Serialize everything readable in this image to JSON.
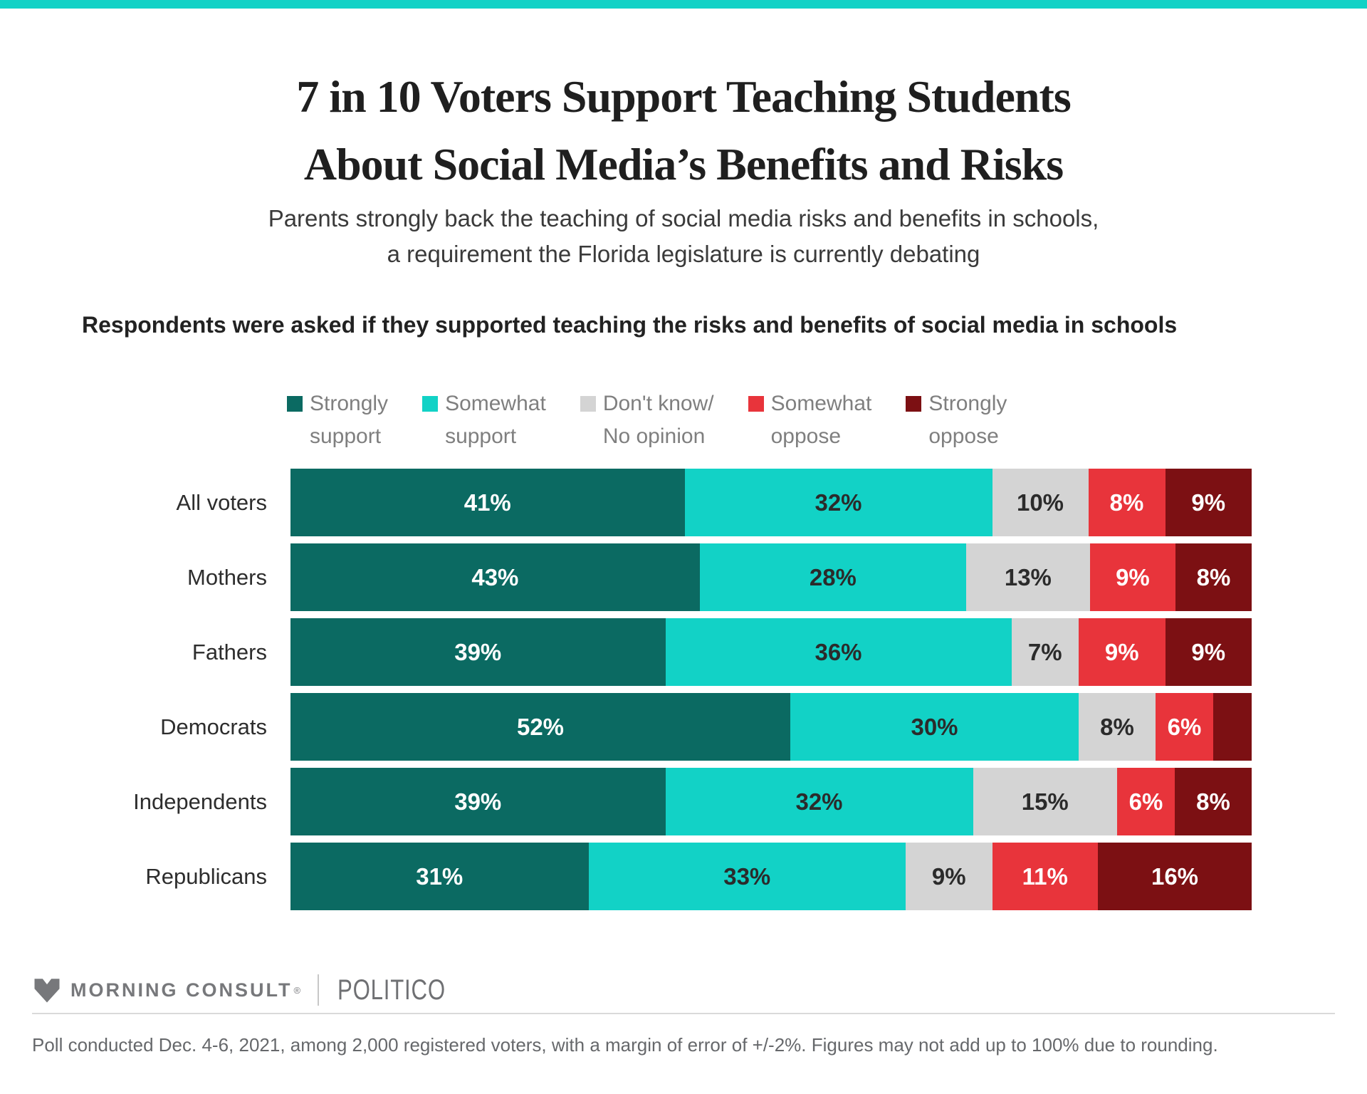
{
  "header": {
    "title_line1": "7 in 10 Voters Support Teaching Students",
    "title_line2": "About Social Media’s Benefits and Risks",
    "subtitle_line1": "Parents strongly back the teaching of social media risks and benefits in schools,",
    "subtitle_line2": "a requirement the Florida legislature is currently debating",
    "question": "Respondents were asked if they supported teaching the risks and benefits of social media in schools"
  },
  "colors": {
    "accent_bar": "#12d2c6",
    "strongly_support": "#0b6a62",
    "somewhat_support": "#12d2c6",
    "dont_know_no_opinion": "#d4d4d4",
    "somewhat_oppose": "#e8343b",
    "strongly_oppose": "#7c1013",
    "legend_text": "#7f7f7f",
    "dark_value_text": "#2b2b2b",
    "light_value_text": "#ffffff"
  },
  "legend": {
    "items": [
      {
        "label_line1": "Strongly",
        "label_line2": "support",
        "color": "#0b6a62"
      },
      {
        "label_line1": "Somewhat",
        "label_line2": "support",
        "color": "#12d2c6"
      },
      {
        "label_line1": "Don't know/",
        "label_line2": "No opinion",
        "color": "#d4d4d4"
      },
      {
        "label_line1": "Somewhat",
        "label_line2": "oppose",
        "color": "#e8343b"
      },
      {
        "label_line1": "Strongly",
        "label_line2": "oppose",
        "color": "#7c1013"
      }
    ]
  },
  "chart_data": {
    "type": "bar",
    "orientation": "horizontal-stacked",
    "title": "7 in 10 Voters Support Teaching Students About Social Media’s Benefits and Risks",
    "categories": [
      "All voters",
      "Mothers",
      "Fathers",
      "Democrats",
      "Independents",
      "Republicans"
    ],
    "series": [
      {
        "name": "Strongly support",
        "color": "#0b6a62",
        "text_color": "#ffffff",
        "values": [
          41,
          43,
          39,
          52,
          39,
          31
        ]
      },
      {
        "name": "Somewhat support",
        "color": "#12d2c6",
        "text_color": "#2b2b2b",
        "values": [
          32,
          28,
          36,
          30,
          32,
          33
        ]
      },
      {
        "name": "Don't know/ No opinion",
        "color": "#d4d4d4",
        "text_color": "#2b2b2b",
        "values": [
          10,
          13,
          7,
          8,
          15,
          9
        ]
      },
      {
        "name": "Somewhat oppose",
        "color": "#e8343b",
        "text_color": "#ffffff",
        "values": [
          8,
          9,
          9,
          6,
          6,
          11
        ]
      },
      {
        "name": "Strongly oppose",
        "color": "#7c1013",
        "text_color": "#ffffff",
        "values": [
          9,
          8,
          9,
          4,
          8,
          16
        ]
      }
    ],
    "segment_labels": [
      [
        "41%",
        "32%",
        "10%",
        "8%",
        "9%"
      ],
      [
        "43%",
        "28%",
        "13%",
        "9%",
        "8%"
      ],
      [
        "39%",
        "36%",
        "7%",
        "9%",
        "9%"
      ],
      [
        "52%",
        "30%",
        "8%",
        "6%",
        ""
      ],
      [
        "39%",
        "32%",
        "15%",
        "6%",
        "8%"
      ],
      [
        "31%",
        "33%",
        "9%",
        "11%",
        "16%"
      ]
    ],
    "xlim": [
      0,
      100
    ],
    "grid": false,
    "legend_position": "top"
  },
  "footer": {
    "brand_left": "MORNING CONSULT",
    "registered": "®",
    "brand_right": "POLITICO",
    "note": "Poll conducted Dec. 4-6, 2021, among 2,000 registered voters, with a margin of error of +/-2%. Figures may not add up to 100% due to rounding."
  }
}
